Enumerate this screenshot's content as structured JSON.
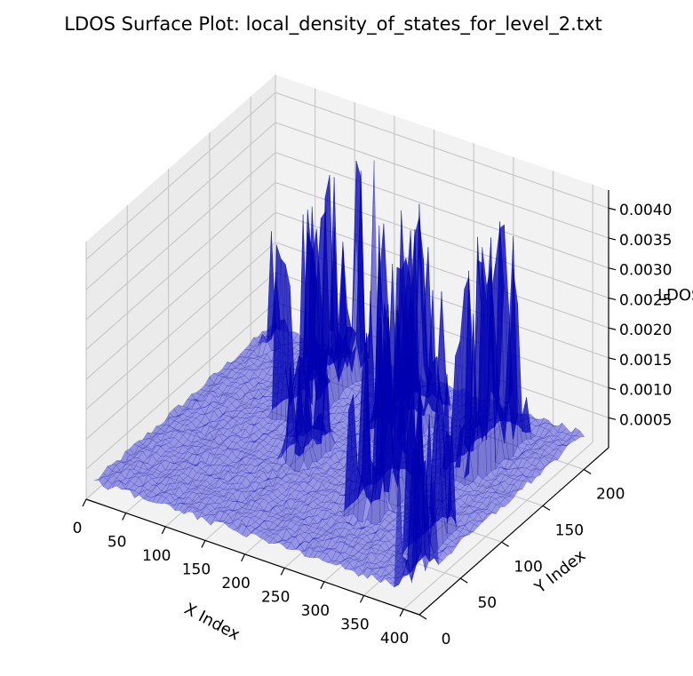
{
  "chart_data": {
    "type": "surface",
    "title": "LDOS Surface Plot: local_density_of_states_for_level_2.txt",
    "xlabel": "X Index",
    "ylabel": "Y Index",
    "zlabel": "LDOS",
    "xlim": [
      0,
      420
    ],
    "ylim": [
      0,
      230
    ],
    "zlim": [
      0,
      0.0043
    ],
    "x_ticks": [
      0,
      50,
      100,
      150,
      200,
      250,
      300,
      350,
      400
    ],
    "y_ticks": [
      0,
      50,
      100,
      150,
      200
    ],
    "z_ticks": [
      0.0005,
      0.001,
      0.0015,
      0.002,
      0.0025,
      0.003,
      0.0035,
      0.004
    ],
    "x_tick_labels": [
      "0",
      "50",
      "100",
      "150",
      "200",
      "250",
      "300",
      "350",
      "400"
    ],
    "y_tick_labels": [
      "0",
      "50",
      "100",
      "150",
      "200"
    ],
    "z_tick_labels": [
      "0.0005",
      "0.0010",
      "0.0015",
      "0.0020",
      "0.0025",
      "0.0030",
      "0.0035",
      "0.0040"
    ],
    "surface_color": "#0000cc",
    "surface_alpha": 0.5,
    "grid": true,
    "floor_level": 0.0002,
    "peak_regions": [
      {
        "x": [
          20,
          30
        ],
        "y": [
          190,
          215
        ],
        "max": 0.0025
      },
      {
        "x": [
          100,
          140
        ],
        "y": [
          130,
          220
        ],
        "max": 0.0039
      },
      {
        "x": [
          150,
          180
        ],
        "y": [
          90,
          130
        ],
        "max": 0.002
      },
      {
        "x": [
          200,
          250
        ],
        "y": [
          140,
          200
        ],
        "max": 0.0038
      },
      {
        "x": [
          260,
          300
        ],
        "y": [
          60,
          120
        ],
        "max": 0.0035
      },
      {
        "x": [
          310,
          350
        ],
        "y": [
          130,
          200
        ],
        "max": 0.004
      },
      {
        "x": [
          360,
          380
        ],
        "y": [
          40,
          90
        ],
        "max": 0.003
      },
      {
        "x": [
          385,
          400
        ],
        "y": [
          5,
          40
        ],
        "max": 0.0027
      }
    ]
  }
}
